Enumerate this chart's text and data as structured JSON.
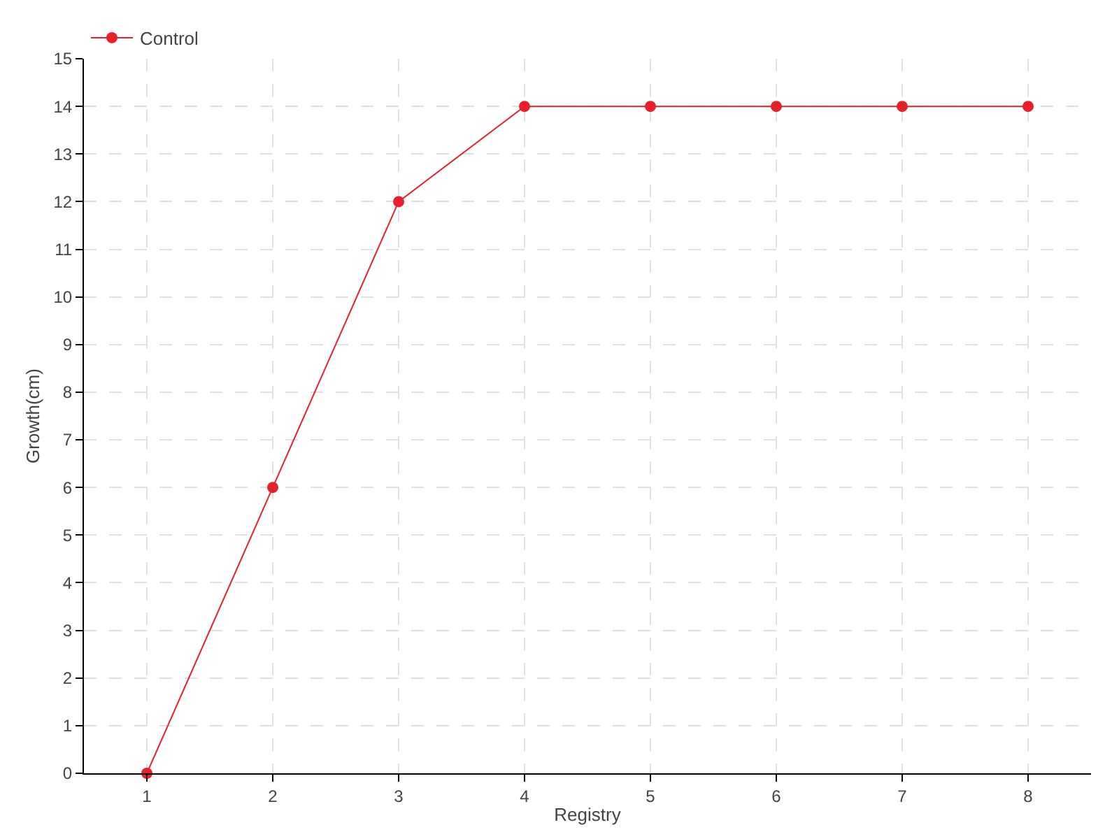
{
  "chart_data": {
    "type": "line",
    "xlabel": "Registry",
    "ylabel": "Growth(cm)",
    "x": [
      1,
      2,
      3,
      4,
      5,
      6,
      7,
      8
    ],
    "series": [
      {
        "name": "Control",
        "color": "#e8202a",
        "values": [
          0,
          6,
          12,
          14,
          14,
          14,
          14,
          14
        ]
      }
    ],
    "xlim": [
      0.5,
      8.5
    ],
    "xticks": [
      1,
      2,
      3,
      4,
      5,
      6,
      7,
      8
    ],
    "ylim": [
      0,
      15
    ],
    "yticks": [
      0,
      1,
      2,
      3,
      4,
      5,
      6,
      7,
      8,
      9,
      10,
      11,
      12,
      13,
      14,
      15
    ],
    "grid": true,
    "legend": "top left",
    "marker": "circle",
    "line_style": "solid"
  }
}
